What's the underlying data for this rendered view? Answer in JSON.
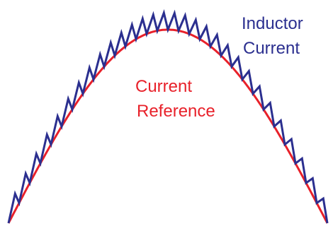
{
  "diagram": {
    "labels": {
      "inductor_line1": "Inductor",
      "inductor_line2": "Current",
      "reference_line1": "Current",
      "reference_line2": "Reference"
    },
    "colors": {
      "inductor_current": "#2b2f8f",
      "current_reference": "#e8212a",
      "background": "#ffffff"
    },
    "waveform": {
      "reference_shape": "half-sine",
      "inductor_shape": "sawtooth ripple riding on the reference",
      "ripple_cycles": 30
    }
  }
}
